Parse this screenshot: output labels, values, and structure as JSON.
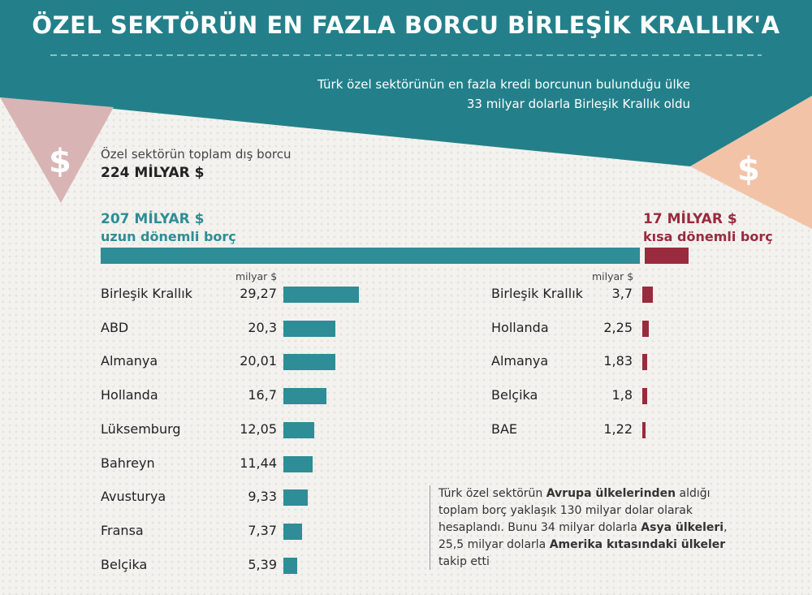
{
  "header": {
    "title": "ÖZEL SEKTÖRÜN EN FAZLA BORCU BİRLEŞİK KRALLIK'A",
    "subtitle_line1": "Türk özel sektörünün en fazla kredi borcunun bulunduğu ülke",
    "subtitle_line2": "33 milyar dolarla Birleşik Krallık oldu"
  },
  "icons": {
    "left": "dollar-icon",
    "right": "dollar-icon",
    "left_glyph": "$",
    "right_glyph": "$"
  },
  "totals": {
    "total_label": "Özel sektörün toplam dış borcu",
    "total_value": "224 MİLYAR $",
    "long_value": "207 MİLYAR $",
    "long_label": "uzun dönemli borç",
    "short_value": "17 MİLYAR $",
    "short_label": "kısa dönemli borç"
  },
  "colors": {
    "teal": "#2e8d96",
    "header_teal": "#23808a",
    "crimson": "#9a2a3e",
    "pink": "#d9b4b5",
    "peach": "#f3c3a8"
  },
  "note": {
    "p1": "Türk özel sektörün ",
    "b1": "Avrupa ülkelerinden",
    "p2": " aldığı toplam borç yaklaşık 130 milyar dolar olarak hesaplandı. Bunu 34 milyar dolarla ",
    "b2": "Asya ülkeleri",
    "p3": ", 25,5 milyar dolarla ",
    "b3": "Amerika kıtasındaki ülkeler",
    "p4": " takip etti"
  },
  "chart_data": [
    {
      "type": "bar",
      "title": "",
      "unit": "milyar $",
      "split": {
        "total": 224,
        "long": 207,
        "short": 17
      }
    },
    {
      "type": "bar",
      "orientation": "horizontal",
      "series_name": "uzun dönemli borç",
      "unit": "milyar $",
      "categories": [
        "Birleşik Krallık",
        "ABD",
        "Almanya",
        "Hollanda",
        "Lüksemburg",
        "Bahreyn",
        "Avusturya",
        "Fransa",
        "Belçika"
      ],
      "values": [
        29.27,
        20.3,
        20.01,
        16.7,
        12.05,
        11.44,
        9.33,
        7.37,
        5.39
      ],
      "labels": [
        "29,27",
        "20,3",
        "20,01",
        "16,7",
        "12,05",
        "11,44",
        "9,33",
        "7,37",
        "5,39"
      ],
      "color": "#2e8d96"
    },
    {
      "type": "bar",
      "orientation": "horizontal",
      "series_name": "kısa dönemli borç",
      "unit": "milyar $",
      "categories": [
        "Birleşik Krallık",
        "Hollanda",
        "Almanya",
        "Belçika",
        "BAE"
      ],
      "values": [
        3.7,
        2.25,
        1.83,
        1.8,
        1.22
      ],
      "labels": [
        "3,7",
        "2,25",
        "1,83",
        "1,8",
        "1,22"
      ],
      "color": "#9a2a3e"
    }
  ]
}
